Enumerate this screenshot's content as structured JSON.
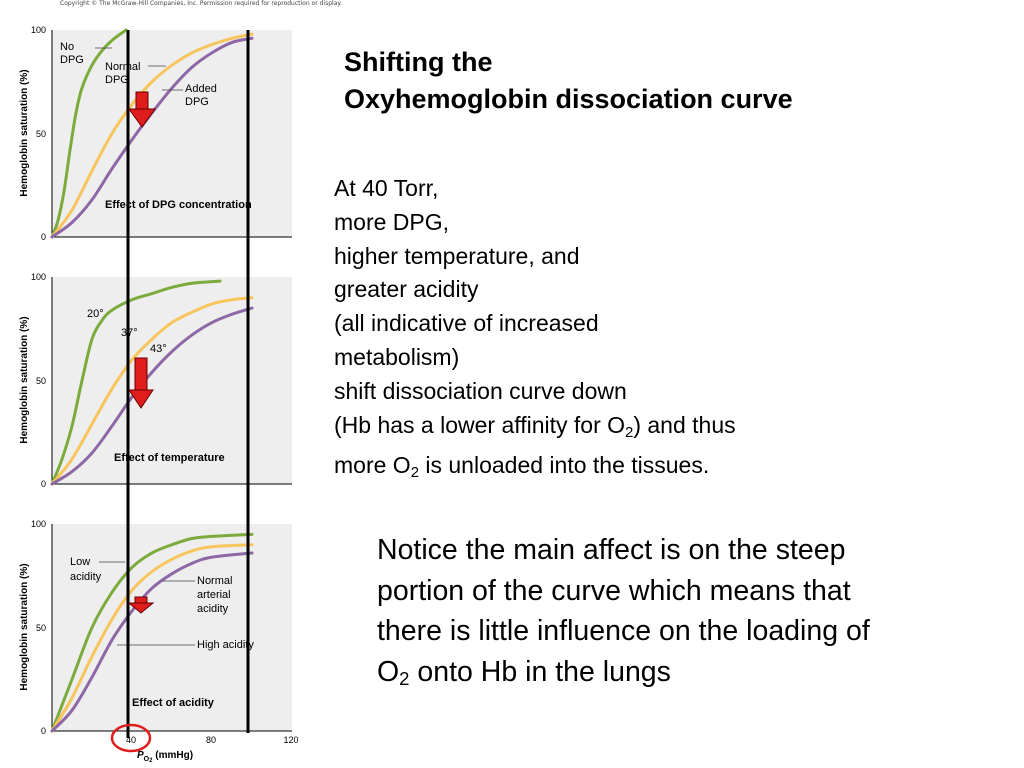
{
  "copyright": "Copyright © The McGraw-Hill Companies, Inc. Permission required for reproduction or display.",
  "slide_title": [
    "Shifting the",
    "Oxyhemoglobin dissociation curve"
  ],
  "body": {
    "l1": "At 40 Torr,",
    "l2": "more DPG,",
    "l3": "higher temperature, and",
    "l4": "greater acidity",
    "l5": "(all indicative of increased",
    "l6": "metabolism)",
    "l7": "shift dissociation curve down",
    "l8a": "(Hb has a lower affinity for O",
    "l8sub": "2",
    "l8b": ") and thus",
    "l9a": "more O",
    "l9sub": "2",
    "l9b": " is unloaded into the tissues."
  },
  "notice": {
    "l1": "Notice the main affect is on the steep",
    "l2": "portion of the curve which means that",
    "l3": "there is little influence on the loading of",
    "l4a": "O",
    "l4sub": "2",
    "l4b": " onto Hb in the lungs"
  },
  "colors": {
    "green": "#7aab3c",
    "yellow": "#f7c55c",
    "purple": "#8e67a6",
    "panel": "#eeeeee",
    "arrow": "#e01d1d",
    "circle": "#e01d1d"
  },
  "y_axis_label": "Hemoglobin saturation (%)",
  "x_axis_label": {
    "italic_p": "P",
    "sub": "O",
    "sub2": "2",
    "rest": " (mmHg)"
  },
  "chart_data": [
    {
      "type": "line",
      "title": "Effect of DPG concentration",
      "ylabel": "Hemoglobin saturation (%)",
      "y_ticks": [
        "0",
        "50",
        "100"
      ],
      "ylim": [
        0,
        100
      ],
      "xlim": [
        0,
        120
      ],
      "series": [
        {
          "name": "No DPG",
          "color": "green",
          "points": [
            [
              0,
              0
            ],
            [
              3,
              8
            ],
            [
              6,
              22
            ],
            [
              9,
              42
            ],
            [
              12,
              60
            ],
            [
              15,
              72
            ],
            [
              20,
              83
            ],
            [
              25,
              90
            ],
            [
              30,
              95
            ],
            [
              37,
              100
            ]
          ]
        },
        {
          "name": "Normal DPG",
          "color": "yellow",
          "points": [
            [
              0,
              0
            ],
            [
              10,
              13
            ],
            [
              20,
              32
            ],
            [
              30,
              50
            ],
            [
              40,
              64
            ],
            [
              50,
              75
            ],
            [
              60,
              83
            ],
            [
              70,
              89
            ],
            [
              80,
              93
            ],
            [
              90,
              96
            ],
            [
              100,
              98
            ]
          ]
        },
        {
          "name": "Added DPG",
          "color": "purple",
          "points": [
            [
              0,
              0
            ],
            [
              10,
              7
            ],
            [
              20,
              18
            ],
            [
              30,
              33
            ],
            [
              40,
              47
            ],
            [
              50,
              60
            ],
            [
              60,
              72
            ],
            [
              70,
              82
            ],
            [
              80,
              89
            ],
            [
              90,
              94
            ],
            [
              100,
              96
            ]
          ]
        }
      ],
      "labels": [
        {
          "text": "No",
          "color": "#000"
        },
        {
          "text": "DPG",
          "color": "#000"
        },
        {
          "text": "Normal",
          "color": "#000"
        },
        {
          "text": "DPG",
          "color": "#000"
        },
        {
          "text": "Added",
          "color": "#000"
        },
        {
          "text": "DPG",
          "color": "#000"
        }
      ]
    },
    {
      "type": "line",
      "title": "Effect of temperature",
      "ylabel": "Hemoglobin saturation (%)",
      "y_ticks": [
        "0",
        "50",
        "100"
      ],
      "ylim": [
        0,
        100
      ],
      "xlim": [
        0,
        120
      ],
      "series": [
        {
          "name": "20°",
          "color": "green",
          "points": [
            [
              0,
              0
            ],
            [
              5,
              12
            ],
            [
              10,
              28
            ],
            [
              15,
              50
            ],
            [
              20,
              70
            ],
            [
              25,
              79
            ],
            [
              30,
              84
            ],
            [
              40,
              89
            ],
            [
              50,
              92
            ],
            [
              60,
              95
            ],
            [
              70,
              97
            ],
            [
              84,
              98
            ]
          ]
        },
        {
          "name": "37°",
          "color": "yellow",
          "points": [
            [
              0,
              0
            ],
            [
              10,
              12
            ],
            [
              20,
              29
            ],
            [
              30,
              46
            ],
            [
              40,
              60
            ],
            [
              50,
              70
            ],
            [
              60,
              78
            ],
            [
              70,
              83
            ],
            [
              80,
              87
            ],
            [
              90,
              89
            ],
            [
              100,
              90
            ]
          ]
        },
        {
          "name": "43°",
          "color": "purple",
          "points": [
            [
              0,
              0
            ],
            [
              10,
              6
            ],
            [
              20,
              15
            ],
            [
              30,
              28
            ],
            [
              40,
              42
            ],
            [
              50,
              54
            ],
            [
              60,
              64
            ],
            [
              70,
              72
            ],
            [
              80,
              78
            ],
            [
              90,
              82
            ],
            [
              100,
              85
            ]
          ]
        }
      ]
    },
    {
      "type": "line",
      "title": "Effect of acidity",
      "ylabel": "Hemoglobin saturation (%)",
      "x_ticks": [
        "40",
        "80",
        "120"
      ],
      "y_ticks": [
        "0",
        "50",
        "100"
      ],
      "ylim": [
        0,
        100
      ],
      "xlim": [
        0,
        120
      ],
      "series": [
        {
          "name": "Low acidity",
          "color": "green",
          "points": [
            [
              0,
              0
            ],
            [
              10,
              25
            ],
            [
              20,
              50
            ],
            [
              30,
              67
            ],
            [
              40,
              79
            ],
            [
              50,
              86
            ],
            [
              60,
              90
            ],
            [
              70,
              93
            ],
            [
              80,
              94
            ],
            [
              100,
              95
            ]
          ]
        },
        {
          "name": "Normal arterial acidity",
          "color": "yellow",
          "points": [
            [
              0,
              0
            ],
            [
              10,
              16
            ],
            [
              20,
              36
            ],
            [
              30,
              54
            ],
            [
              40,
              68
            ],
            [
              50,
              77
            ],
            [
              60,
              83
            ],
            [
              70,
              87
            ],
            [
              80,
              89
            ],
            [
              100,
              90
            ]
          ]
        },
        {
          "name": "High acidity",
          "color": "purple",
          "points": [
            [
              0,
              0
            ],
            [
              10,
              10
            ],
            [
              20,
              26
            ],
            [
              30,
              44
            ],
            [
              40,
              58
            ],
            [
              50,
              69
            ],
            [
              60,
              76
            ],
            [
              70,
              81
            ],
            [
              80,
              84
            ],
            [
              100,
              86
            ]
          ]
        }
      ]
    }
  ],
  "panel_texts": {
    "dpg": {
      "no": "No",
      "no2": "DPG",
      "normal": "Normal",
      "normal2": "DPG",
      "added": "Added",
      "added2": "DPG"
    },
    "temp": {
      "t20": "20°",
      "t37": "37°",
      "t43": "43°"
    },
    "acid": {
      "low": "Low",
      "low2": "acidity",
      "normal": "Normal",
      "normal2": "arterial",
      "normal3": "acidity",
      "high": "High acidity"
    }
  }
}
